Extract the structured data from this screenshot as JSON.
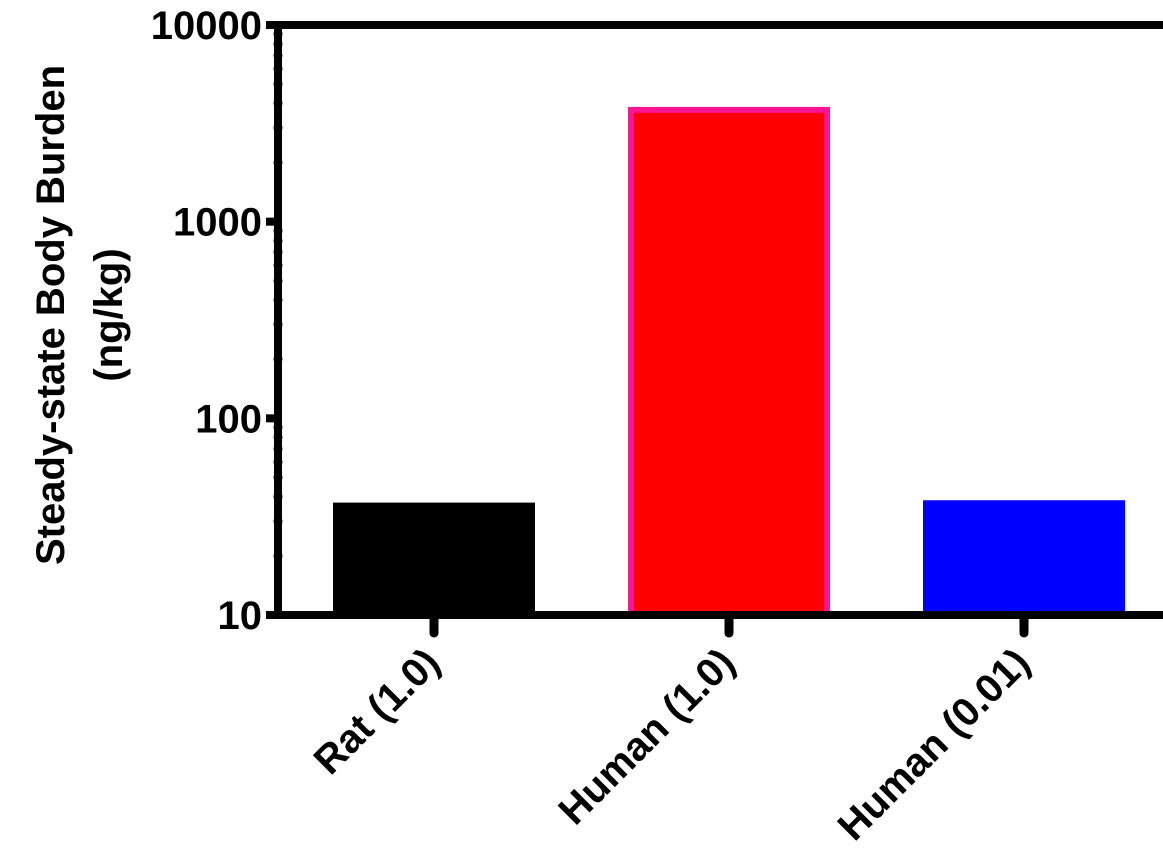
{
  "chart_data": {
    "type": "bar",
    "title": "",
    "xlabel": "",
    "ylabel_lines": [
      "Steady-state Body Burden",
      "(ng/kg)"
    ],
    "yscale": "log",
    "ylim": [
      10,
      10000
    ],
    "yticks": [
      {
        "value": 10,
        "label": "10"
      },
      {
        "value": 100,
        "label": "100"
      },
      {
        "value": 1000,
        "label": "1000"
      },
      {
        "value": 10000,
        "label": "10000"
      }
    ],
    "categories": [
      "Rat (1.0)",
      "Human (1.0)",
      "Human (0.01)"
    ],
    "values": [
      36,
      3700,
      37
    ],
    "colors": {
      "bars": [
        "#000000",
        "#ff0000",
        "#0000ff"
      ],
      "bar_borders": [
        "#000000",
        "#ff1493",
        "#0000ff"
      ],
      "axis": "#000000"
    },
    "grid": false,
    "legend": "none"
  }
}
